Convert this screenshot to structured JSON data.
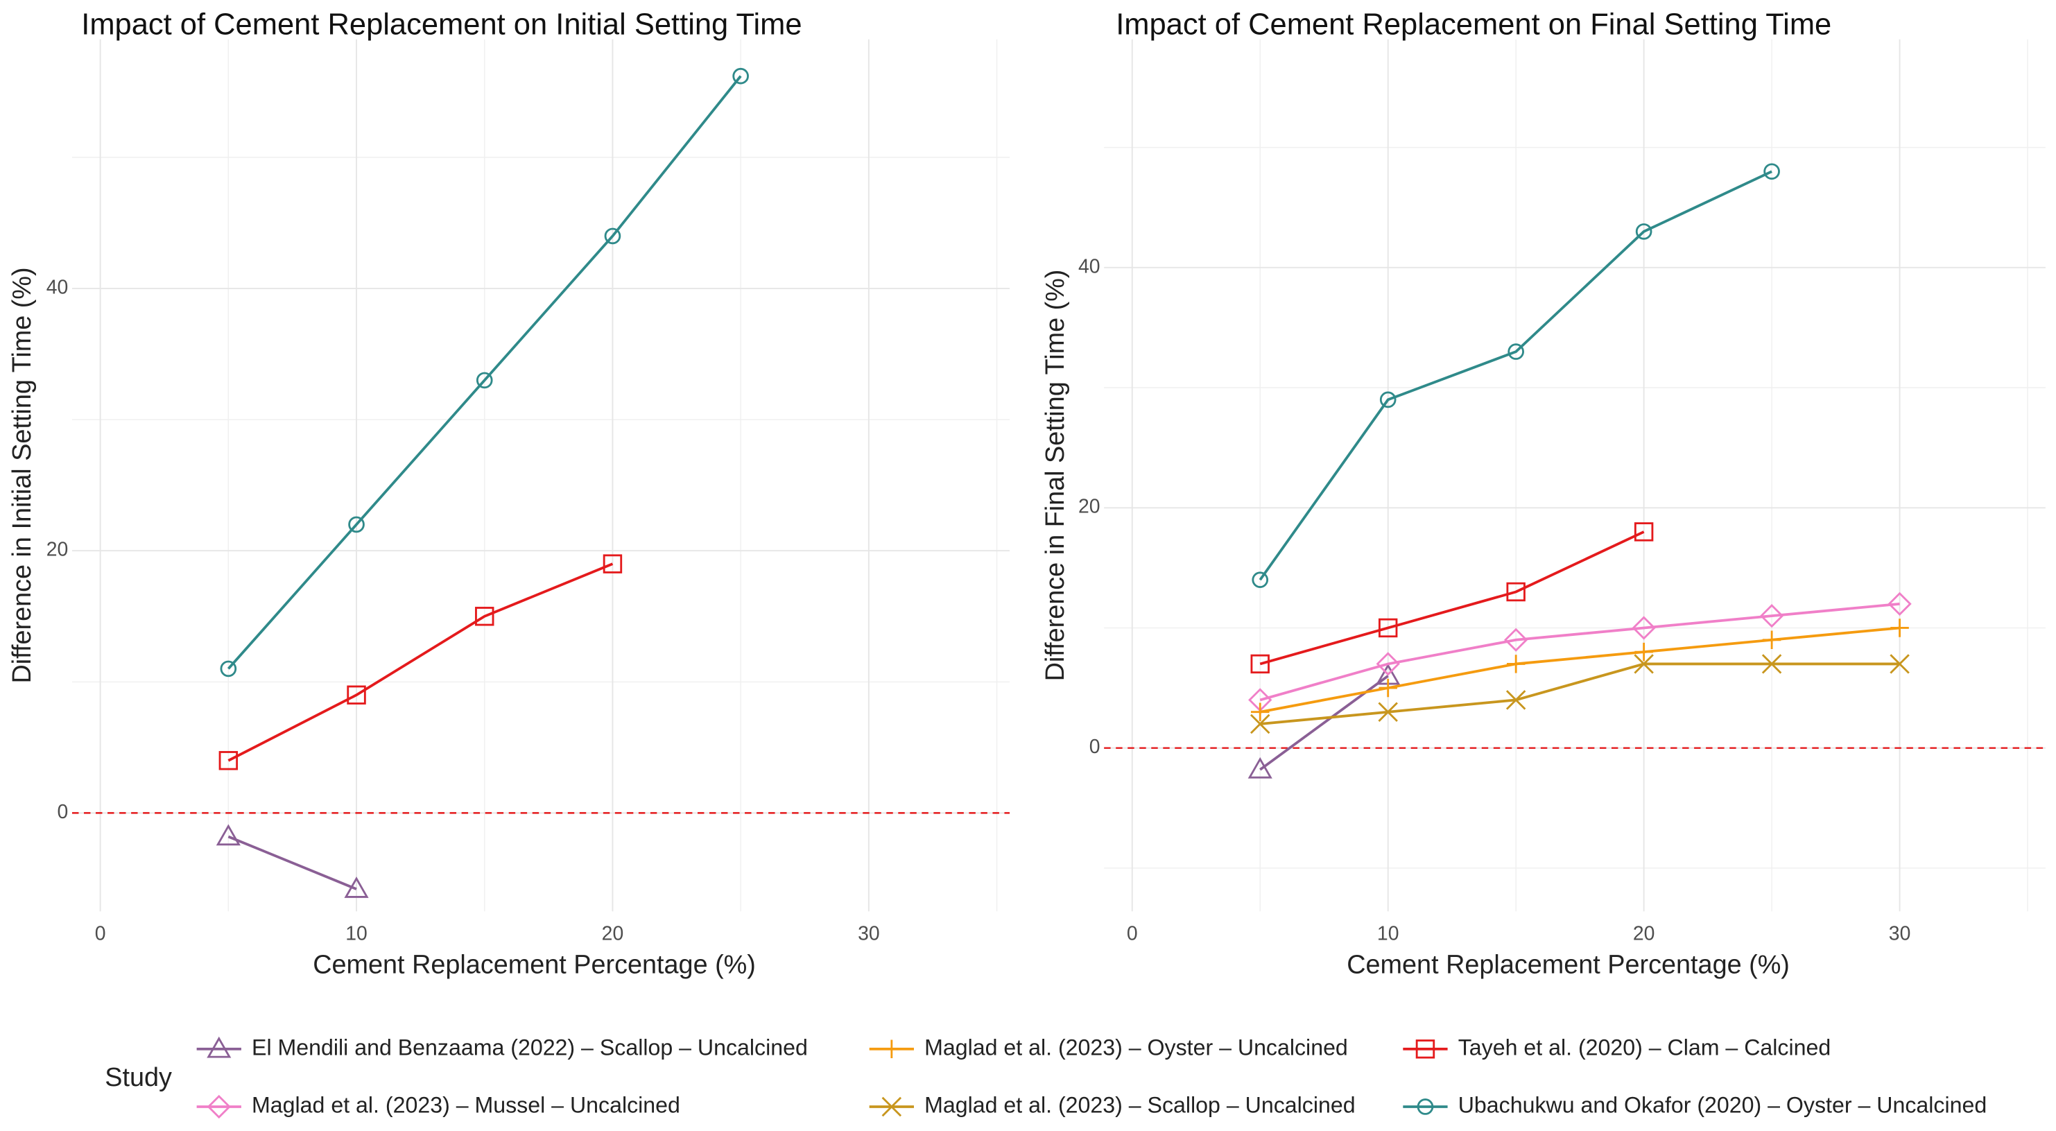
{
  "chart_data": [
    {
      "type": "line",
      "title": "Impact of Cement Replacement on Initial Setting Time",
      "x_label": "Cement Replacement Percentage (%)",
      "y_label": "Difference in Initial Setting Time (%)",
      "xlim": [
        -1.1,
        35.5
      ],
      "ylim": [
        -7.5,
        59
      ],
      "xticks": [
        0,
        10,
        20,
        30
      ],
      "yticks": [
        0,
        20,
        40
      ],
      "x_minor_ticks": [
        5,
        15,
        25,
        35
      ],
      "y_minor_ticks": [
        10,
        30,
        50
      ],
      "grid": true,
      "reference_line": {
        "y": 0,
        "color": "#e41a1c"
      },
      "series": [
        {
          "name": "El Mendili and Benzaama (2022) – Scallop – Uncalcined",
          "color": "#8a5f95",
          "marker": "triangle",
          "x": [
            5,
            10
          ],
          "values": [
            -1.8,
            -5.8
          ]
        },
        {
          "name": "Tayeh et al. (2020) – Clam – Calcined",
          "color": "#e41a1c",
          "marker": "square",
          "x": [
            5,
            10,
            15,
            20
          ],
          "values": [
            4,
            9,
            15,
            19
          ]
        },
        {
          "name": "Ubachukwu and Okafor (2020) – Oyster – Uncalcined",
          "color": "#2f8a8a",
          "marker": "circle",
          "x": [
            5,
            10,
            15,
            20,
            25
          ],
          "values": [
            11,
            22,
            33,
            44,
            56.2
          ]
        }
      ]
    },
    {
      "type": "line",
      "title": "Impact of Cement Replacement on Final Setting Time",
      "x_label": "Cement Replacement Percentage (%)",
      "y_label": "Difference in Final Setting Time (%)",
      "xlim": [
        -1.1,
        35.7
      ],
      "ylim": [
        -13.6,
        59
      ],
      "xticks": [
        0,
        10,
        20,
        30
      ],
      "yticks": [
        0,
        20,
        40
      ],
      "x_minor_ticks": [
        5,
        15,
        25,
        35
      ],
      "y_minor_ticks": [
        -10,
        10,
        30,
        50
      ],
      "grid": true,
      "reference_line": {
        "y": 0,
        "color": "#e41a1c"
      },
      "legend_title": "Study",
      "series": [
        {
          "name": "El Mendili and Benzaama (2022) – Scallop – Uncalcined",
          "color": "#8a5f95",
          "marker": "triangle",
          "x": [
            5,
            10
          ],
          "values": [
            -1.8,
            6
          ]
        },
        {
          "name": "Maglad et al. (2023) – Mussel – Uncalcined",
          "color": "#f07fc8",
          "marker": "diamond",
          "x": [
            5,
            10,
            15,
            20,
            25,
            30
          ],
          "values": [
            4,
            7,
            9,
            10,
            11,
            12
          ]
        },
        {
          "name": "Maglad et al. (2023) – Oyster – Uncalcined",
          "color": "#f59b0f",
          "marker": "plus",
          "x": [
            5,
            10,
            15,
            20,
            25,
            30
          ],
          "values": [
            3,
            5,
            7,
            8,
            9,
            10
          ]
        },
        {
          "name": "Maglad et al. (2023) – Scallop – Uncalcined",
          "color": "#c8961e",
          "marker": "x",
          "x": [
            5,
            10,
            15,
            20,
            25,
            30
          ],
          "values": [
            2,
            3,
            4,
            7,
            7,
            7
          ]
        },
        {
          "name": "Tayeh et al. (2020) – Clam – Calcined",
          "color": "#e41a1c",
          "marker": "square",
          "x": [
            5,
            10,
            15,
            20
          ],
          "values": [
            7,
            10,
            13,
            18
          ]
        },
        {
          "name": "Ubachukwu and Okafor (2020) – Oyster – Uncalcined",
          "color": "#2f8a8a",
          "marker": "circle",
          "x": [
            5,
            10,
            15,
            20,
            25
          ],
          "values": [
            14,
            29,
            33,
            43,
            48
          ]
        }
      ]
    }
  ]
}
